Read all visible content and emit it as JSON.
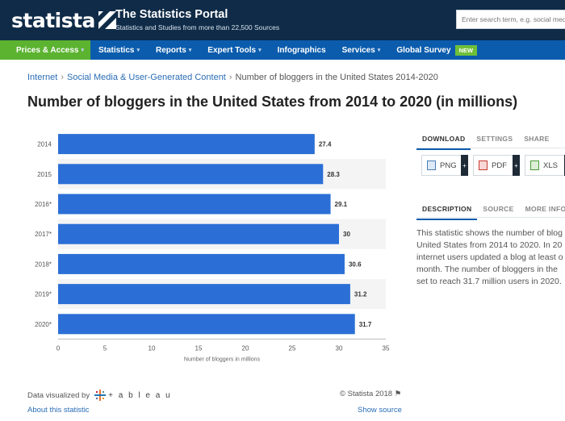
{
  "header": {
    "logo_text": "statista",
    "portal_title": "The Statistics Portal",
    "portal_subtitle": "Statistics and Studies from more than 22,500 Sources",
    "search_placeholder": "Enter search term, e.g. social media"
  },
  "nav": {
    "items": [
      {
        "label": "Prices & Access",
        "caret": "▾"
      },
      {
        "label": "Statistics",
        "caret": "▾"
      },
      {
        "label": "Reports",
        "caret": "▾"
      },
      {
        "label": "Expert Tools",
        "caret": "▾"
      },
      {
        "label": "Infographics",
        "caret": ""
      },
      {
        "label": "Services",
        "caret": "▾"
      },
      {
        "label": "Global Survey",
        "caret": ""
      }
    ],
    "new_badge": "NEW"
  },
  "breadcrumb": {
    "items": [
      "Internet",
      "Social Media & User-Generated Content"
    ],
    "current": "Number of bloggers in the United States 2014-2020",
    "separator": "›"
  },
  "page_title": "Number of bloggers in the United States from 2014 to 2020 (in millions)",
  "chart_data": {
    "type": "bar",
    "orientation": "horizontal",
    "categories": [
      "2014",
      "2015",
      "2016*",
      "2017*",
      "2018*",
      "2019*",
      "2020*"
    ],
    "values": [
      27.4,
      28.3,
      29.1,
      30,
      30.6,
      31.2,
      31.7
    ],
    "value_labels": [
      "27.4",
      "28.3",
      "29.1",
      "30",
      "30.6",
      "31.2",
      "31.7"
    ],
    "xlabel": "Number of bloggers in millions",
    "xlim": [
      0,
      35
    ],
    "xticks": [
      0,
      5,
      10,
      15,
      20,
      25,
      30,
      35
    ],
    "bar_color": "#2b6fd6",
    "row_band_color": "#f4f4f4",
    "grid": false
  },
  "right_panel": {
    "tabs": [
      "DOWNLOAD",
      "SETTINGS",
      "SHARE"
    ],
    "downloads": [
      {
        "label": "PNG",
        "icon": "png-file-icon"
      },
      {
        "label": "PDF",
        "icon": "pdf-file-icon"
      },
      {
        "label": "XLS",
        "icon": "xls-file-icon"
      }
    ],
    "plus": "+",
    "desc_tabs": [
      "DESCRIPTION",
      "SOURCE",
      "MORE INFO"
    ],
    "description_lines": [
      "This statistic shows the number of blog",
      "United States from 2014 to 2020. In 20",
      "internet users updated a blog at least o",
      "month. The number of bloggers in the",
      "set to reach 31.7 million users in 2020."
    ]
  },
  "footer": {
    "visualized_by": "Data visualized by",
    "tableau_text": "+ a b l e a u",
    "about_link": "About this statistic",
    "copyright": "© Statista 2018",
    "show_source": "Show source"
  },
  "colors": {
    "header_bg": "#0f2b47",
    "nav_bg": "#0b5cad",
    "nav_active": "#5bb330",
    "link": "#2a6db5"
  }
}
